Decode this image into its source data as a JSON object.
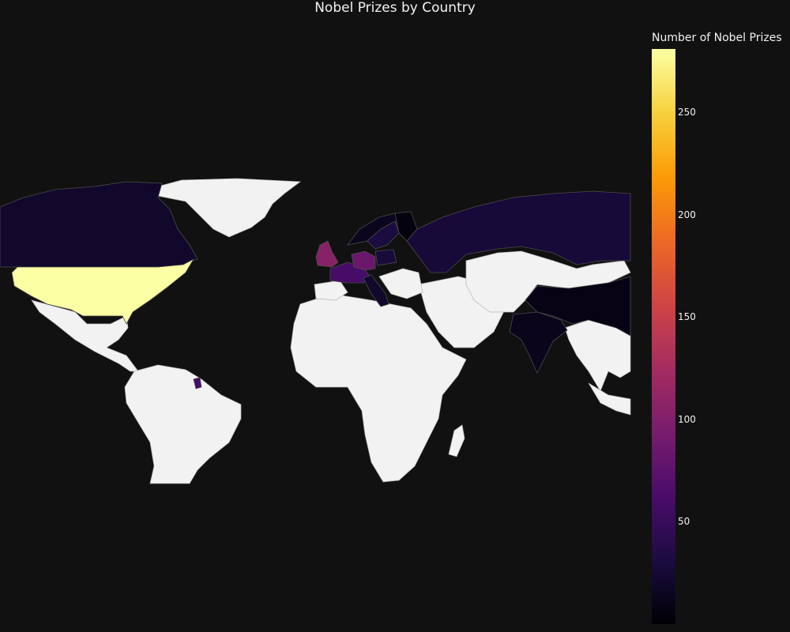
{
  "title": "Nobel Prizes by Country",
  "colorbar": {
    "title": "Number of Nobel Prizes",
    "min": 0,
    "max": 281,
    "ticks": [
      50,
      100,
      150,
      200,
      250
    ],
    "colorscale": [
      "#000004",
      "#1b0c41",
      "#4a0c6b",
      "#781c6d",
      "#a52c60",
      "#cf4446",
      "#ed6925",
      "#fb9b06",
      "#f7d13d",
      "#fcffa4"
    ]
  },
  "colors": {
    "background": "#111111",
    "no_data": "#f2f2f2",
    "border": "#4a4a4a"
  },
  "chart_data": {
    "type": "choropleth",
    "locations": [
      {
        "name": "United States",
        "value": 281
      },
      {
        "name": "United Kingdom",
        "value": 105
      },
      {
        "name": "Germany",
        "value": 85
      },
      {
        "name": "France",
        "value": 60
      },
      {
        "name": "Sweden",
        "value": 30
      },
      {
        "name": "Russia",
        "value": 27
      },
      {
        "name": "Canada",
        "value": 20
      },
      {
        "name": "Poland",
        "value": 28
      },
      {
        "name": "Italy",
        "value": 20
      },
      {
        "name": "Norway",
        "value": 13
      },
      {
        "name": "Finland",
        "value": 5
      },
      {
        "name": "India",
        "value": 12
      },
      {
        "name": "China",
        "value": 8
      },
      {
        "name": "French Guiana",
        "value": 60
      }
    ]
  }
}
